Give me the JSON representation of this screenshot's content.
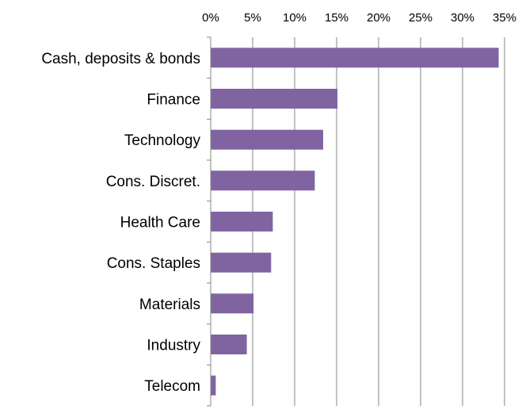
{
  "chart_data": {
    "type": "bar",
    "orientation": "horizontal",
    "categories": [
      "Cash, deposits & bonds",
      "Finance",
      "Technology",
      "Cons. Discret.",
      "Health Care",
      "Cons. Staples",
      "Materials",
      "Industry",
      "Telecom"
    ],
    "values": [
      34.3,
      15.1,
      13.4,
      12.4,
      7.4,
      7.2,
      5.1,
      4.3,
      0.6
    ],
    "xlim": [
      0,
      35
    ],
    "x_ticks": [
      "0%",
      "5%",
      "10%",
      "15%",
      "20%",
      "25%",
      "30%",
      "35%"
    ],
    "x_axis_position": "top",
    "grid": "vertical",
    "legend": "none",
    "colors": {
      "bar": "#8064a2",
      "grid": "#868686",
      "axis": "#868686"
    }
  }
}
